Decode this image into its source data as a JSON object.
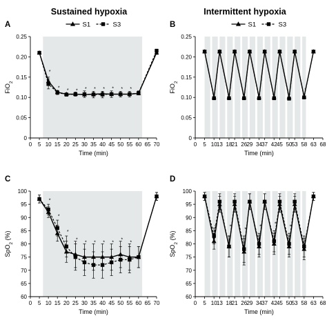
{
  "figure": {
    "column_titles": [
      "Sustained hypoxia",
      "Intermittent hypoxia"
    ]
  },
  "chart_data": [
    {
      "panel": "A",
      "type": "line",
      "ylabel_main": "FiO",
      "ylabel_sub": "2",
      "xlabel": "Time (min)",
      "xlim": [
        0,
        70
      ],
      "ylim": [
        0,
        0.25
      ],
      "xticks": [
        0,
        5,
        10,
        15,
        20,
        25,
        30,
        35,
        40,
        45,
        50,
        55,
        60,
        65,
        70
      ],
      "yticks": [
        0,
        0.05,
        0.1,
        0.15,
        0.2,
        0.25
      ],
      "ytick_labels": [
        "0",
        "0.05",
        "0.10",
        "0.15",
        "0.20",
        "0.25"
      ],
      "shaded": [
        [
          7,
          62
        ]
      ],
      "legend": {
        "placement": "top",
        "entries": [
          {
            "name": "S1",
            "marker": "triangle",
            "line": "solid"
          },
          {
            "name": "S3",
            "marker": "square",
            "line": "dashed"
          }
        ]
      },
      "series": [
        {
          "name": "S1",
          "x": [
            5,
            10,
            15,
            20,
            25,
            30,
            35,
            40,
            45,
            50,
            55,
            60,
            70
          ],
          "y": [
            0.21,
            0.14,
            0.113,
            0.108,
            0.108,
            0.107,
            0.108,
            0.109,
            0.108,
            0.108,
            0.108,
            0.11,
            0.21
          ],
          "err": [
            0,
            0.01,
            0.004,
            0.003,
            0.003,
            0.004,
            0.004,
            0.004,
            0.004,
            0.004,
            0.004,
            0.004,
            0.004
          ]
        },
        {
          "name": "S3",
          "x": [
            5,
            10,
            15,
            20,
            25,
            30,
            35,
            40,
            45,
            50,
            55,
            60,
            70
          ],
          "y": [
            0.21,
            0.133,
            0.112,
            0.107,
            0.108,
            0.108,
            0.107,
            0.107,
            0.108,
            0.108,
            0.108,
            0.111,
            0.215
          ],
          "err": [
            0,
            0.012,
            0.005,
            0.004,
            0.005,
            0.008,
            0.008,
            0.008,
            0.008,
            0.007,
            0.007,
            0.005,
            0.004
          ]
        }
      ],
      "sig_marks": {
        "x": [
          10,
          15,
          20,
          25,
          30,
          35,
          40,
          45,
          50,
          55
        ],
        "y": [
          0.16,
          0.12,
          0.114,
          0.113,
          0.117,
          0.117,
          0.117,
          0.118,
          0.117,
          0.117
        ],
        "symbol": "*"
      }
    },
    {
      "panel": "B",
      "type": "line",
      "ylabel_main": "FiO",
      "ylabel_sub": "2",
      "xlabel": "Time (min)",
      "xlim": [
        0,
        68
      ],
      "ylim": [
        0,
        0.25
      ],
      "xticks": [
        0,
        5,
        10,
        13,
        18,
        21,
        26,
        29,
        34,
        37,
        42,
        45,
        50,
        53,
        58,
        63,
        68
      ],
      "yticks": [
        0,
        0.05,
        0.1,
        0.15,
        0.2,
        0.25
      ],
      "ytick_labels": [
        "0",
        "0.05",
        "0.10",
        "0.15",
        "0.20",
        "0.25"
      ],
      "shaded": [
        [
          5,
          8
        ],
        [
          9,
          12
        ],
        [
          13,
          16
        ],
        [
          17,
          20
        ],
        [
          21,
          24
        ],
        [
          25,
          28
        ],
        [
          29,
          32
        ],
        [
          33,
          36
        ],
        [
          37,
          40
        ],
        [
          41,
          44
        ],
        [
          45,
          48
        ],
        [
          49,
          52
        ],
        [
          53,
          56
        ],
        [
          57,
          59
        ]
      ],
      "legend": {
        "placement": "top",
        "entries": [
          {
            "name": "S1",
            "marker": "triangle",
            "line": "solid"
          },
          {
            "name": "S3",
            "marker": "square",
            "line": "dashed"
          }
        ]
      },
      "series": [
        {
          "name": "S1",
          "x": [
            5,
            10,
            13,
            18,
            21,
            26,
            29,
            34,
            37,
            42,
            45,
            50,
            53,
            58,
            63
          ],
          "y": [
            0.213,
            0.1,
            0.213,
            0.1,
            0.213,
            0.1,
            0.213,
            0.1,
            0.213,
            0.1,
            0.213,
            0.1,
            0.213,
            0.102,
            0.213
          ]
        },
        {
          "name": "S3",
          "x": [
            5,
            10,
            13,
            18,
            21,
            26,
            29,
            34,
            37,
            42,
            45,
            50,
            53,
            58,
            63
          ],
          "y": [
            0.213,
            0.098,
            0.213,
            0.098,
            0.213,
            0.098,
            0.213,
            0.098,
            0.213,
            0.098,
            0.213,
            0.097,
            0.213,
            0.1,
            0.213
          ]
        }
      ],
      "sig_marks": {
        "x": [
          58
        ],
        "y": [
          0.115
        ],
        "symbol": "*"
      }
    },
    {
      "panel": "C",
      "type": "line",
      "ylabel_main": "SpO",
      "ylabel_sub": "2",
      "ylabel_suffix": " (%)",
      "xlabel": "Time (min)",
      "xlim": [
        0,
        70
      ],
      "ylim": [
        60,
        100
      ],
      "xticks": [
        0,
        5,
        10,
        15,
        20,
        25,
        30,
        35,
        40,
        45,
        50,
        55,
        60,
        65,
        70
      ],
      "yticks": [
        60,
        65,
        70,
        75,
        80,
        85,
        90,
        95,
        100
      ],
      "ytick_labels": [
        "60",
        "65",
        "70",
        "75",
        "80",
        "85",
        "90",
        "95",
        "100"
      ],
      "shaded": [
        [
          7,
          62
        ]
      ],
      "series": [
        {
          "name": "S1",
          "x": [
            5,
            10,
            15,
            20,
            25,
            30,
            35,
            40,
            45,
            50,
            55,
            60,
            70
          ],
          "y": [
            97,
            92,
            84,
            77,
            76,
            75,
            75,
            75,
            75,
            76,
            75,
            75,
            98
          ],
          "err": [
            1.5,
            2,
            3,
            4,
            5,
            5,
            5,
            5,
            5,
            5,
            5,
            4,
            1.5
          ]
        },
        {
          "name": "S3",
          "x": [
            5,
            10,
            15,
            20,
            25,
            30,
            35,
            40,
            45,
            50,
            55,
            60,
            70
          ],
          "y": [
            97,
            93,
            86,
            79,
            75,
            73,
            72,
            72,
            73,
            74,
            74,
            75,
            98
          ],
          "err": [
            1.5,
            2,
            3,
            4,
            5,
            5,
            5,
            5,
            5,
            5,
            5,
            4,
            1.5
          ]
        }
      ],
      "sig_marks": {
        "x": [
          10,
          15,
          20,
          25,
          30,
          35,
          40,
          45,
          50,
          55
        ],
        "y": [
          96,
          90,
          84,
          81,
          80,
          80,
          80,
          80,
          81,
          80
        ],
        "symbol": "*"
      }
    },
    {
      "panel": "D",
      "type": "line",
      "ylabel_main": "SpO",
      "ylabel_sub": "2",
      "ylabel_suffix": " (%)",
      "xlabel": "Time (min)",
      "xlim": [
        0,
        68
      ],
      "ylim": [
        60,
        100
      ],
      "xticks": [
        0,
        5,
        10,
        13,
        18,
        21,
        26,
        29,
        34,
        37,
        42,
        45,
        50,
        53,
        58,
        63,
        68
      ],
      "yticks": [
        60,
        65,
        70,
        75,
        80,
        85,
        90,
        95,
        100
      ],
      "ytick_labels": [
        "60",
        "65",
        "70",
        "75",
        "80",
        "85",
        "90",
        "95",
        "100"
      ],
      "shaded": [
        [
          5,
          8
        ],
        [
          9,
          12
        ],
        [
          13,
          16
        ],
        [
          17,
          20
        ],
        [
          21,
          24
        ],
        [
          25,
          28
        ],
        [
          29,
          32
        ],
        [
          33,
          36
        ],
        [
          37,
          40
        ],
        [
          41,
          44
        ],
        [
          45,
          48
        ],
        [
          49,
          52
        ],
        [
          53,
          56
        ],
        [
          57,
          59
        ]
      ],
      "series": [
        {
          "name": "S1",
          "x": [
            5,
            10,
            13,
            18,
            21,
            26,
            29,
            34,
            37,
            42,
            45,
            50,
            53,
            58,
            63
          ],
          "y": [
            98,
            81,
            95,
            79,
            95,
            77,
            96,
            79,
            96,
            80,
            95,
            79,
            95,
            78,
            98
          ],
          "err": [
            1.5,
            3,
            3,
            4,
            3,
            5,
            3,
            4,
            3,
            4,
            3,
            4,
            3,
            4,
            1.5
          ]
        },
        {
          "name": "S3",
          "x": [
            5,
            10,
            13,
            18,
            21,
            26,
            29,
            34,
            37,
            42,
            45,
            50,
            53,
            58,
            63
          ],
          "y": [
            98,
            83,
            96,
            79,
            96,
            78,
            96,
            80,
            96,
            81,
            96,
            80,
            96,
            79,
            98
          ],
          "err": [
            1.5,
            3,
            3,
            4,
            3,
            5,
            3,
            4,
            3,
            4,
            3,
            4,
            3,
            4,
            1.5
          ]
        }
      ],
      "sig_marks": {
        "x": [
          10,
          18,
          26,
          34,
          42,
          50
        ],
        "y": [
          86,
          86,
          85,
          86,
          87,
          86
        ],
        "symbol": "*"
      }
    }
  ]
}
